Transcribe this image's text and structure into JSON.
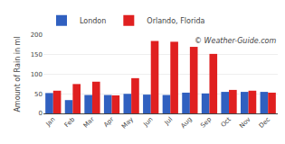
{
  "chart_data": {
    "type": "bar",
    "categories": [
      "Jan",
      "Feb",
      "Mar",
      "Apr",
      "May",
      "Jun",
      "Jul",
      "Aug",
      "Sep",
      "Oct",
      "Nov",
      "Dec"
    ],
    "series": [
      {
        "name": "London",
        "color": "#3060c0",
        "values": [
          52,
          34,
          47,
          47,
          50,
          48,
          47,
          53,
          51,
          55,
          55,
          55
        ]
      },
      {
        "name": "Orlando, Florida",
        "color": "#e02020",
        "values": [
          58,
          75,
          81,
          46,
          90,
          185,
          183,
          170,
          152,
          60,
          58,
          53
        ]
      }
    ],
    "ylabel": "Amount of Rain in ml",
    "annotations": [
      "© Weather-Guide.com"
    ],
    "ylim": [
      0,
      200
    ],
    "yticks": [
      0,
      50,
      100,
      150,
      200
    ],
    "grid": true,
    "legend": "upper left"
  }
}
